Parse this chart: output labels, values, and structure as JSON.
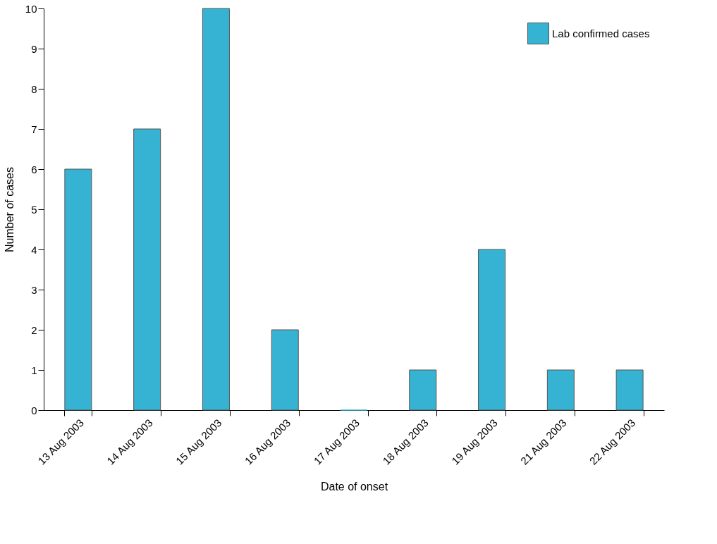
{
  "chart_data": {
    "type": "bar",
    "xlabel": "Date of onset",
    "ylabel": "Number of cases",
    "categories": [
      "13 Aug 2003",
      "14 Aug 2003",
      "15 Aug 2003",
      "16 Aug 2003",
      "17 Aug 2003",
      "18 Aug 2003",
      "19 Aug 2003",
      "21 Aug 2003",
      "22 Aug 2003"
    ],
    "series": [
      {
        "name": "Lab confirmed cases",
        "color": "#36b3d3",
        "values": [
          6,
          7,
          10,
          2,
          0,
          1,
          4,
          1,
          1
        ]
      }
    ],
    "ylim": [
      0,
      10
    ],
    "yticks": [
      0,
      1,
      2,
      3,
      4,
      5,
      6,
      7,
      8,
      9,
      10
    ],
    "grid": false,
    "legend": "top right"
  }
}
